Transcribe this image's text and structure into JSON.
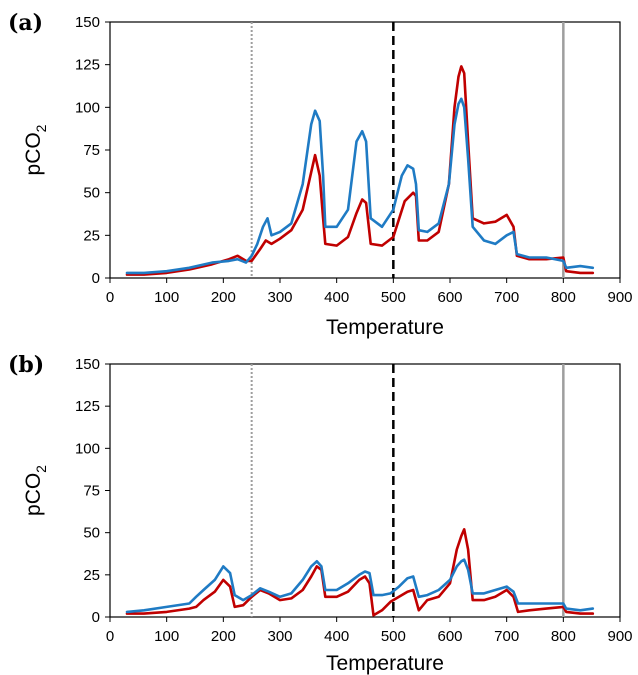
{
  "chart_data": [
    {
      "type": "line",
      "panel_label": "(a)",
      "xlabel": "Temperature",
      "ylabel": "pCO",
      "ylabel_sub": "2",
      "xlim": [
        0,
        900
      ],
      "ylim": [
        0,
        150
      ],
      "xticks": [
        0,
        100,
        200,
        300,
        400,
        500,
        600,
        700,
        800,
        900
      ],
      "yticks": [
        0,
        25,
        50,
        75,
        100,
        125,
        150
      ],
      "grid": false,
      "vlines": [
        {
          "x": 250,
          "style": "dotted",
          "color": "#9e9e9e"
        },
        {
          "x": 500,
          "style": "dashed",
          "color": "#000000"
        },
        {
          "x": 800,
          "style": "solid",
          "color": "#9e9e9e"
        }
      ],
      "series": [
        {
          "color": "#c00000",
          "x": [
            30,
            60,
            100,
            140,
            180,
            210,
            225,
            240,
            250,
            265,
            275,
            285,
            300,
            320,
            340,
            355,
            362,
            370,
            376,
            380,
            400,
            420,
            435,
            445,
            452,
            460,
            480,
            500,
            520,
            535,
            540,
            545,
            560,
            580,
            598,
            608,
            615,
            620,
            625,
            632,
            640,
            660,
            680,
            700,
            712,
            718,
            740,
            770,
            800,
            805,
            830,
            852
          ],
          "y": [
            2,
            2,
            3,
            5,
            8,
            11,
            13,
            10,
            10,
            17,
            22,
            20,
            23,
            28,
            40,
            62,
            72,
            60,
            35,
            20,
            19,
            24,
            38,
            46,
            44,
            20,
            19,
            24,
            45,
            50,
            48,
            22,
            22,
            27,
            55,
            100,
            118,
            124,
            120,
            80,
            35,
            32,
            33,
            37,
            30,
            13,
            11,
            11,
            12,
            4,
            3,
            3
          ]
        },
        {
          "color": "#1f7bc4",
          "x": [
            30,
            60,
            100,
            140,
            180,
            210,
            225,
            240,
            250,
            260,
            270,
            278,
            285,
            300,
            320,
            340,
            355,
            362,
            370,
            376,
            380,
            400,
            420,
            435,
            445,
            452,
            460,
            480,
            500,
            515,
            525,
            535,
            540,
            545,
            560,
            580,
            598,
            608,
            615,
            620,
            625,
            632,
            640,
            660,
            680,
            700,
            712,
            718,
            740,
            770,
            800,
            805,
            830,
            852
          ],
          "y": [
            3,
            3,
            4,
            6,
            9,
            10,
            11,
            9,
            13,
            20,
            30,
            35,
            25,
            27,
            32,
            55,
            90,
            98,
            92,
            60,
            30,
            30,
            40,
            80,
            86,
            80,
            35,
            30,
            40,
            60,
            66,
            64,
            55,
            28,
            27,
            32,
            55,
            90,
            102,
            105,
            100,
            70,
            30,
            22,
            20,
            25,
            27,
            14,
            12,
            12,
            10,
            6,
            7,
            6
          ]
        }
      ]
    },
    {
      "type": "line",
      "panel_label": "(b)",
      "xlabel": "Temperature",
      "ylabel": "pCO",
      "ylabel_sub": "2",
      "xlim": [
        0,
        900
      ],
      "ylim": [
        0,
        150
      ],
      "xticks": [
        0,
        100,
        200,
        300,
        400,
        500,
        600,
        700,
        800,
        900
      ],
      "yticks": [
        0,
        25,
        50,
        75,
        100,
        125,
        150
      ],
      "grid": false,
      "vlines": [
        {
          "x": 250,
          "style": "dotted",
          "color": "#9e9e9e"
        },
        {
          "x": 500,
          "style": "dashed",
          "color": "#000000"
        },
        {
          "x": 800,
          "style": "solid",
          "color": "#9e9e9e"
        }
      ],
      "series": [
        {
          "color": "#c00000",
          "x": [
            30,
            60,
            100,
            140,
            152,
            165,
            185,
            200,
            212,
            220,
            235,
            250,
            265,
            280,
            300,
            320,
            340,
            355,
            365,
            373,
            380,
            400,
            420,
            440,
            450,
            458,
            465,
            480,
            495,
            510,
            525,
            535,
            545,
            560,
            580,
            600,
            612,
            620,
            625,
            632,
            640,
            660,
            680,
            700,
            712,
            720,
            740,
            770,
            800,
            805,
            830,
            852
          ],
          "y": [
            2,
            2,
            3,
            5,
            6,
            10,
            15,
            22,
            18,
            6,
            7,
            12,
            16,
            14,
            10,
            11,
            16,
            24,
            30,
            28,
            12,
            12,
            15,
            22,
            24,
            20,
            1,
            4,
            9,
            12,
            15,
            16,
            4,
            10,
            12,
            20,
            40,
            48,
            52,
            40,
            10,
            10,
            12,
            16,
            12,
            3,
            4,
            5,
            6,
            3,
            2,
            2
          ]
        },
        {
          "color": "#1f7bc4",
          "x": [
            30,
            60,
            100,
            140,
            152,
            165,
            185,
            200,
            212,
            220,
            235,
            250,
            265,
            280,
            300,
            320,
            340,
            355,
            365,
            373,
            380,
            400,
            420,
            440,
            450,
            458,
            465,
            480,
            495,
            510,
            525,
            535,
            545,
            560,
            580,
            600,
            612,
            620,
            625,
            632,
            640,
            660,
            680,
            700,
            712,
            720,
            740,
            770,
            800,
            805,
            830,
            852
          ],
          "y": [
            3,
            4,
            6,
            8,
            12,
            16,
            22,
            30,
            26,
            13,
            10,
            13,
            17,
            15,
            12,
            14,
            22,
            30,
            33,
            30,
            16,
            16,
            20,
            25,
            27,
            26,
            13,
            13,
            14,
            18,
            23,
            24,
            12,
            13,
            16,
            22,
            30,
            33,
            34,
            28,
            14,
            14,
            16,
            18,
            15,
            8,
            8,
            8,
            8,
            5,
            4,
            5
          ]
        }
      ]
    }
  ]
}
